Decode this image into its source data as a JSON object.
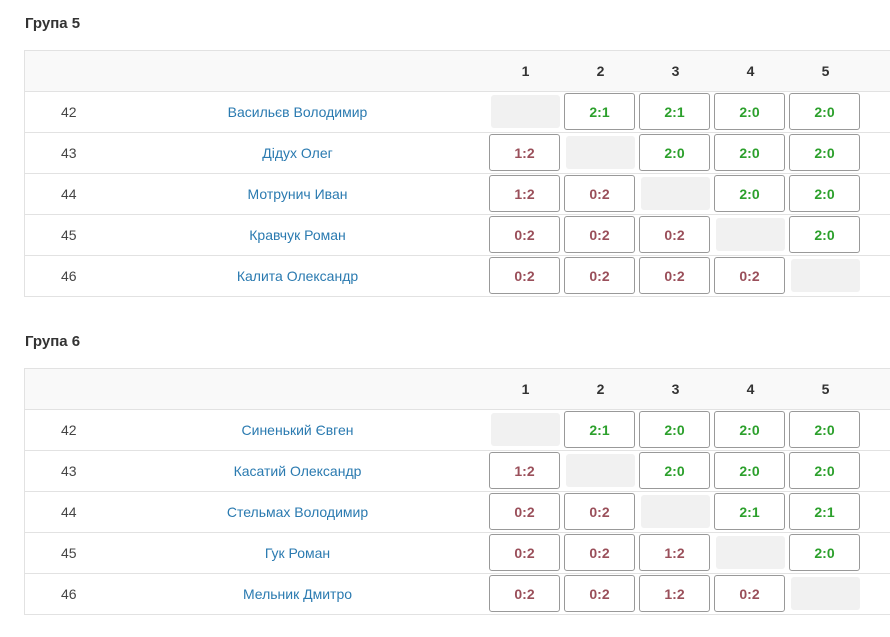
{
  "columns": [
    "1",
    "2",
    "3",
    "4",
    "5"
  ],
  "groups": [
    {
      "title": "Група 5",
      "rows": [
        {
          "num": "42",
          "name": "Васильєв Володимир",
          "results": [
            "",
            "2:1",
            "2:1",
            "2:0",
            "2:0"
          ]
        },
        {
          "num": "43",
          "name": "Дідух Олег",
          "results": [
            "1:2",
            "",
            "2:0",
            "2:0",
            "2:0"
          ]
        },
        {
          "num": "44",
          "name": "Мотрунич Иван",
          "results": [
            "1:2",
            "0:2",
            "",
            "2:0",
            "2:0"
          ]
        },
        {
          "num": "45",
          "name": "Кравчук Роман",
          "results": [
            "0:2",
            "0:2",
            "0:2",
            "",
            "2:0"
          ]
        },
        {
          "num": "46",
          "name": "Калита Олександр",
          "results": [
            "0:2",
            "0:2",
            "0:2",
            "0:2",
            ""
          ]
        }
      ]
    },
    {
      "title": "Група 6",
      "rows": [
        {
          "num": "42",
          "name": "Синенький Євген",
          "results": [
            "",
            "2:1",
            "2:0",
            "2:0",
            "2:0"
          ]
        },
        {
          "num": "43",
          "name": "Касатий Олександр",
          "results": [
            "1:2",
            "",
            "2:0",
            "2:0",
            "2:0"
          ]
        },
        {
          "num": "44",
          "name": "Стельмах Володимир",
          "results": [
            "0:2",
            "0:2",
            "",
            "2:1",
            "2:1"
          ]
        },
        {
          "num": "45",
          "name": "Гук Роман",
          "results": [
            "0:2",
            "0:2",
            "1:2",
            "",
            "2:0"
          ]
        },
        {
          "num": "46",
          "name": "Мельник Дмитро",
          "results": [
            "0:2",
            "0:2",
            "1:2",
            "0:2",
            ""
          ]
        }
      ]
    }
  ],
  "colors": {
    "win": "#2ca02c",
    "loss": "#9a4f5a",
    "link": "#2a7ab0"
  }
}
